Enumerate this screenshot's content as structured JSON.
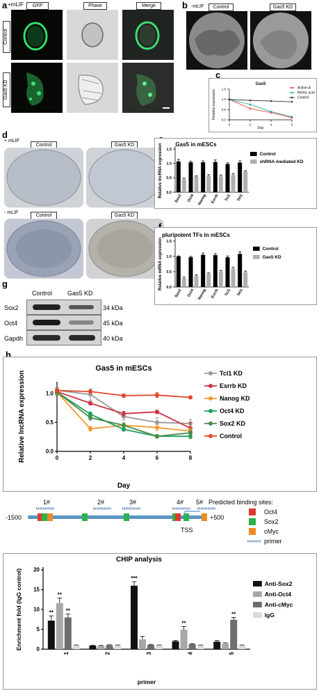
{
  "panel_a": {
    "letter": "a",
    "condition": "+mLIF",
    "columns": [
      "GFP",
      "Phase",
      "Merge"
    ],
    "rows": [
      "Control",
      "Gas5 KD"
    ]
  },
  "panel_b": {
    "letter": "b",
    "condition": "-mLIF",
    "columns": [
      "Control",
      "Gas5 KD"
    ]
  },
  "panel_d": {
    "letter": "d",
    "top_condition": "+ mLIF",
    "bottom_condition": "- mLIF",
    "columns": [
      "Control",
      "Gas5 KD"
    ]
  },
  "panel_g": {
    "letter": "g",
    "columns": [
      "Control",
      "Gas5 KD"
    ],
    "rows": [
      {
        "protein": "Sox2",
        "size": "34 kDa"
      },
      {
        "protein": "Oct4",
        "size": "45 kDa"
      },
      {
        "protein": "Gapdh",
        "size": "40 kDa"
      }
    ]
  },
  "panel_promoter": {
    "title": "Predicted binding sites:",
    "left": "-1500",
    "right": "+500",
    "tss": "TSS",
    "sites": [
      "1#",
      "2#",
      "3#",
      "4#",
      "5#"
    ],
    "legend": [
      {
        "label": "Oct4",
        "color": "#e03a2f"
      },
      {
        "label": "Sox2",
        "color": "#2bb24c"
      },
      {
        "label": "cMyc",
        "color": "#f08a24"
      },
      {
        "label": "primer",
        "color": "#6a8fbf"
      }
    ]
  },
  "chart_data": [
    {
      "panel": "c",
      "type": "line",
      "title": "Gas5",
      "xlabel": "Day",
      "ylabel": "Relative expression",
      "x": [
        0,
        2,
        4,
        6
      ],
      "ylim": [
        0,
        1.5
      ],
      "yticks": [
        0.0,
        0.5,
        1.0,
        1.5
      ],
      "series": [
        {
          "name": "Activin A",
          "color": "#e0463a",
          "values": [
            1.0,
            0.55,
            0.35,
            0.1
          ]
        },
        {
          "name": "Retnic acid",
          "color": "#27a39a",
          "values": [
            1.0,
            0.75,
            0.4,
            0.15
          ]
        },
        {
          "name": "Control",
          "color": "#333333",
          "values": [
            1.0,
            0.95,
            0.92,
            0.88
          ]
        }
      ]
    },
    {
      "panel": "e",
      "type": "bar",
      "title": "Gas5 in mESCs",
      "ylabel": "Relative lncRNA expression",
      "categories": [
        "Sox2",
        "Oct4",
        "Nanog",
        "Esrrb",
        "Tcl1",
        "Tet1"
      ],
      "ylim": [
        0,
        1.5
      ],
      "yticks": [
        0.0,
        0.5,
        1.0,
        1.5
      ],
      "series": [
        {
          "name": "Control",
          "color": "#000000",
          "values": [
            1.07,
            1.04,
            1.04,
            1.05,
            0.98,
            1.03
          ],
          "err": [
            0.07,
            0.04,
            0.05,
            0.07,
            0.04,
            0.06
          ]
        },
        {
          "name": "shRNA mediated KD",
          "color": "#b0b0b0",
          "values": [
            0.45,
            0.55,
            0.57,
            0.56,
            0.6,
            0.72
          ],
          "err": [
            0.04,
            0.02,
            0.04,
            0.04,
            0.05,
            0.03
          ]
        }
      ]
    },
    {
      "panel": "f",
      "type": "bar",
      "title": "pluripotent TFs in mESCs",
      "ylabel": "Relative mRNA expression",
      "categories": [
        "Sox2",
        "Oct4",
        "Nanog",
        "Esrrb",
        "Tcl1",
        "Tet1"
      ],
      "ylim": [
        0,
        1.5
      ],
      "yticks": [
        0.0,
        0.5,
        1.0,
        1.5
      ],
      "series": [
        {
          "name": "Control",
          "color": "#000000",
          "values": [
            1.0,
            0.97,
            1.05,
            1.04,
            0.97,
            1.08
          ],
          "err": [
            0.02,
            0.03,
            0.06,
            0.05,
            0.04,
            0.07
          ]
        },
        {
          "name": "Gas5 KD",
          "color": "#b0b0b0",
          "values": [
            0.28,
            0.37,
            0.44,
            0.5,
            0.6,
            0.48
          ],
          "err": [
            0.04,
            0.03,
            0.02,
            0.04,
            0.04,
            0.04
          ]
        }
      ]
    },
    {
      "panel": "h",
      "type": "line",
      "title": "Gas5 in mESCs",
      "xlabel": "Day",
      "ylabel": "Relative lncRNA expression",
      "x": [
        0,
        2,
        4,
        6,
        8
      ],
      "ylim": [
        0,
        1.2
      ],
      "yticks": [
        0.0,
        0.5,
        1.0
      ],
      "series": [
        {
          "name": "Tcl1 KD",
          "color": "#999999",
          "values": [
            1.05,
            0.98,
            0.6,
            0.5,
            0.48
          ],
          "err": [
            0.05,
            0.1,
            0.06,
            0.08,
            0.07
          ]
        },
        {
          "name": "Esrrb KD",
          "color": "#cc3344",
          "values": [
            1.03,
            0.83,
            0.65,
            0.68,
            0.4
          ],
          "err": [
            0.04,
            0.03,
            0.04,
            0.03,
            0.1
          ]
        },
        {
          "name": "Nanog KD",
          "color": "#f29a2e",
          "values": [
            1.02,
            0.39,
            0.45,
            0.41,
            0.35
          ],
          "err": [
            0.04,
            0.04,
            0.04,
            0.05,
            0.05
          ]
        },
        {
          "name": "Oct4 KD",
          "color": "#1f9e5a",
          "values": [
            1.02,
            0.64,
            0.38,
            0.26,
            0.26
          ],
          "err": [
            0.05,
            0.04,
            0.03,
            0.03,
            0.04
          ]
        },
        {
          "name": "Sox2 KD",
          "color": "#4a8a4a",
          "values": [
            1.02,
            0.58,
            0.45,
            0.26,
            0.32
          ],
          "err": [
            0.05,
            0.04,
            0.04,
            0.03,
            0.04
          ]
        },
        {
          "name": "Control",
          "color": "#e0462a",
          "values": [
            1.05,
            1.03,
            0.96,
            0.97,
            0.93
          ],
          "err": [
            0.04,
            0.03,
            0.03,
            0.04,
            0.02
          ]
        }
      ]
    },
    {
      "panel": "i",
      "type": "bar",
      "title": "CHIP analysis",
      "xlabel": "primer",
      "ylabel": "Enrichment fold (IgG control)",
      "categories": [
        "1",
        "2",
        "3",
        "4",
        "5"
      ],
      "ylim": [
        0,
        20
      ],
      "yticks": [
        0,
        5,
        10,
        15,
        20
      ],
      "series": [
        {
          "name": "Anti-Sox2",
          "color": "#111111",
          "values": [
            7.2,
            0.9,
            16.0,
            2.0,
            1.9
          ],
          "err": [
            1.2,
            0.1,
            1.0,
            0.2,
            0.3
          ],
          "sig": [
            "**",
            "",
            "***",
            "",
            ""
          ]
        },
        {
          "name": "Anti-Oct4",
          "color": "#a8a8a8",
          "values": [
            11.6,
            0.85,
            2.5,
            4.9,
            1.4
          ],
          "err": [
            1.3,
            0.1,
            0.7,
            0.8,
            0.2
          ],
          "sig": [
            "**",
            "",
            "",
            "**",
            ""
          ]
        },
        {
          "name": "Anti-cMyc",
          "color": "#6d6d6d",
          "values": [
            8.0,
            1.0,
            1.1,
            1.3,
            7.4
          ],
          "err": [
            0.9,
            0.1,
            0.1,
            0.1,
            0.6
          ],
          "sig": [
            "**",
            "",
            "",
            "",
            "**"
          ]
        },
        {
          "name": "IgG",
          "color": "#dcdcdc",
          "values": [
            1.0,
            1.0,
            1.0,
            1.0,
            1.0
          ],
          "err": [
            0.05,
            0.05,
            0.05,
            0.05,
            0.05
          ],
          "sig": [
            "",
            "",
            "",
            "",
            ""
          ]
        }
      ]
    }
  ]
}
